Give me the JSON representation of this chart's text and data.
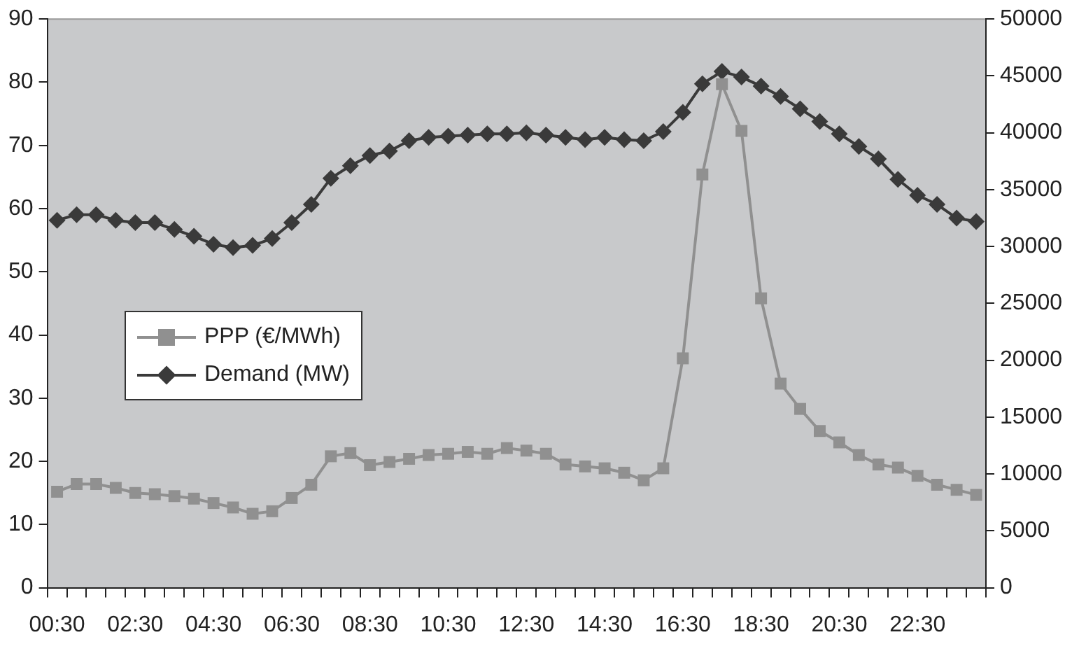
{
  "chart_data": {
    "type": "line",
    "categories": [
      "00:30",
      null,
      null,
      null,
      "02:30",
      null,
      null,
      null,
      "04:30",
      null,
      null,
      null,
      "06:30",
      null,
      null,
      null,
      "08:30",
      null,
      null,
      null,
      "10:30",
      null,
      null,
      null,
      "12:30",
      null,
      null,
      null,
      "14:30",
      null,
      null,
      null,
      "16:30",
      null,
      null,
      null,
      "18:30",
      null,
      null,
      null,
      "20:30",
      null,
      null,
      null,
      "22:30",
      null,
      null,
      null
    ],
    "series": [
      {
        "name": "PPP (€/MWh)",
        "color": "#909090",
        "marker": "square",
        "values": [
          15.2,
          16.4,
          16.4,
          15.8,
          15.0,
          14.8,
          14.5,
          14.1,
          13.4,
          12.7,
          11.7,
          12.1,
          14.2,
          16.3,
          20.8,
          21.3,
          19.4,
          19.9,
          20.4,
          21.0,
          21.2,
          21.5,
          21.2,
          22.1,
          21.7,
          21.2,
          19.5,
          19.2,
          18.9,
          18.2,
          17.0,
          18.9,
          36.3,
          65.4,
          79.7,
          72.3,
          45.8,
          32.3,
          28.3,
          24.8,
          23.0,
          21.0,
          19.5,
          19.0,
          17.7,
          16.3,
          15.5,
          14.7
        ]
      },
      {
        "name": "Demand (MW)",
        "color": "#3a3a3a",
        "marker": "diamond",
        "axis": "y2",
        "values": [
          32300,
          32800,
          32800,
          32300,
          32100,
          32100,
          31500,
          30900,
          30200,
          29900,
          30100,
          30700,
          32100,
          33700,
          36000,
          37100,
          38000,
          38400,
          39300,
          39600,
          39700,
          39800,
          39900,
          39900,
          40000,
          39800,
          39600,
          39400,
          39600,
          39400,
          39300,
          40100,
          41800,
          44300,
          45400,
          44900,
          44100,
          43200,
          42100,
          41000,
          39900,
          38800,
          37700,
          35900,
          34500,
          33700,
          32500,
          32200
        ]
      }
    ],
    "ylim": [
      0,
      90
    ],
    "yticks": [
      0,
      10,
      20,
      30,
      40,
      50,
      60,
      70,
      80,
      90
    ],
    "y2lim": [
      0,
      50000
    ],
    "y2ticks": [
      0,
      5000,
      10000,
      15000,
      20000,
      25000,
      30000,
      35000,
      40000,
      45000,
      50000
    ],
    "grid": false,
    "legend": "left",
    "line_style": "solid"
  }
}
